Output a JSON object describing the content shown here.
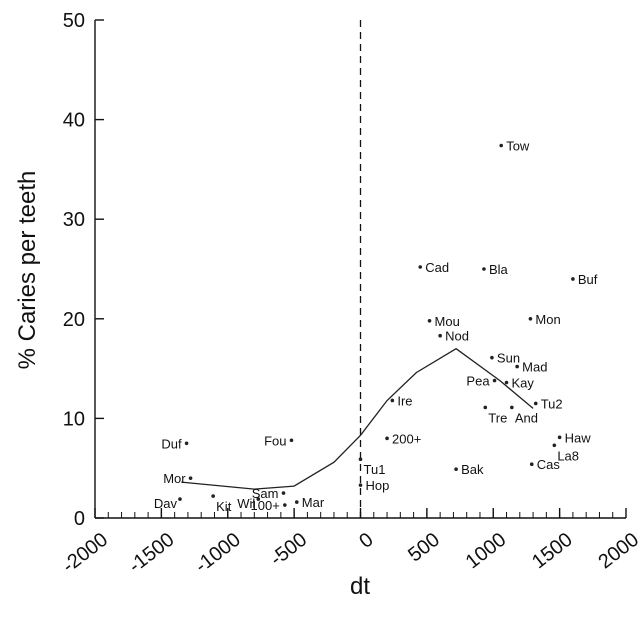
{
  "chart_data": {
    "type": "scatter",
    "title": "",
    "xlabel": "dt",
    "ylabel": "% Caries per teeth",
    "xlim": [
      -2000,
      2000
    ],
    "ylim": [
      0,
      50
    ],
    "x_ticks": [
      -2000,
      -1500,
      -1000,
      -500,
      0,
      500,
      1000,
      1500,
      2000
    ],
    "x_tick_labels": [
      "-2000",
      "-1500",
      "-1000",
      "-500",
      "0",
      "500",
      "1000",
      "1500",
      "2000"
    ],
    "y_ticks": [
      0,
      10,
      20,
      30,
      40,
      50
    ],
    "y_tick_labels": [
      "0",
      "10",
      "20",
      "30",
      "40",
      "50"
    ],
    "x_minor_step": 100,
    "grid": false,
    "reference_line": {
      "x": 0,
      "style": "dashed"
    },
    "colors": {
      "points": "#222222",
      "trend": "#222222",
      "axes": "#111111"
    },
    "points": [
      {
        "label": "Tow",
        "x": 1060,
        "y": 37.4,
        "pos": "right"
      },
      {
        "label": "Cad",
        "x": 450,
        "y": 25.2,
        "pos": "right"
      },
      {
        "label": "Bla",
        "x": 930,
        "y": 25.0,
        "pos": "right"
      },
      {
        "label": "Buf",
        "x": 1600,
        "y": 24.0,
        "pos": "right"
      },
      {
        "label": "Mou",
        "x": 520,
        "y": 19.8,
        "pos": "right"
      },
      {
        "label": "Mon",
        "x": 1280,
        "y": 20.0,
        "pos": "right"
      },
      {
        "label": "Nod",
        "x": 600,
        "y": 18.3,
        "pos": "right"
      },
      {
        "label": "Sun",
        "x": 990,
        "y": 16.1,
        "pos": "right"
      },
      {
        "label": "Mad",
        "x": 1180,
        "y": 15.2,
        "pos": "right"
      },
      {
        "label": "Pea",
        "x": 1010,
        "y": 13.8,
        "pos": "left"
      },
      {
        "label": "Kay",
        "x": 1100,
        "y": 13.6,
        "pos": "right"
      },
      {
        "label": "Ire",
        "x": 240,
        "y": 11.8,
        "pos": "right"
      },
      {
        "label": "Tu2",
        "x": 1320,
        "y": 11.5,
        "pos": "right"
      },
      {
        "label": "Tre",
        "x": 940,
        "y": 11.1,
        "pos": "belowright"
      },
      {
        "label": "And",
        "x": 1140,
        "y": 11.1,
        "pos": "belowright"
      },
      {
        "label": "Haw",
        "x": 1500,
        "y": 8.1,
        "pos": "right"
      },
      {
        "label": "200+",
        "x": 200,
        "y": 8.0,
        "pos": "right"
      },
      {
        "label": "Duf",
        "x": -1310,
        "y": 7.5,
        "pos": "left"
      },
      {
        "label": "Fou",
        "x": -520,
        "y": 7.8,
        "pos": "left"
      },
      {
        "label": "La8",
        "x": 1460,
        "y": 7.3,
        "pos": "belowright"
      },
      {
        "label": "Tu1",
        "x": 0,
        "y": 5.9,
        "pos": "belowright"
      },
      {
        "label": "Bak",
        "x": 720,
        "y": 4.9,
        "pos": "right"
      },
      {
        "label": "Cas",
        "x": 1290,
        "y": 5.4,
        "pos": "right"
      },
      {
        "label": "Mor",
        "x": -1280,
        "y": 4.0,
        "pos": "left"
      },
      {
        "label": "Hop",
        "x": 0,
        "y": 3.3,
        "pos": "right"
      },
      {
        "label": "Sam",
        "x": -580,
        "y": 2.5,
        "pos": "left"
      },
      {
        "label": "Kit",
        "x": -1110,
        "y": 2.2,
        "pos": "belowright"
      },
      {
        "label": "Dav",
        "x": -1360,
        "y": 1.9,
        "pos": "belowleft"
      },
      {
        "label": "Wil",
        "x": -770,
        "y": 1.9,
        "pos": "belowleft"
      },
      {
        "label": "Mar",
        "x": -480,
        "y": 1.6,
        "pos": "right"
      },
      {
        "label": "100+",
        "x": -570,
        "y": 1.3,
        "pos": "left"
      }
    ],
    "trend": [
      {
        "x": -1350,
        "y": 3.6
      },
      {
        "x": -800,
        "y": 2.9
      },
      {
        "x": -500,
        "y": 3.2
      },
      {
        "x": -200,
        "y": 5.6
      },
      {
        "x": 0,
        "y": 8.3
      },
      {
        "x": 200,
        "y": 11.8
      },
      {
        "x": 420,
        "y": 14.6
      },
      {
        "x": 720,
        "y": 17.0
      },
      {
        "x": 1050,
        "y": 13.8
      },
      {
        "x": 1300,
        "y": 11.0
      }
    ]
  }
}
